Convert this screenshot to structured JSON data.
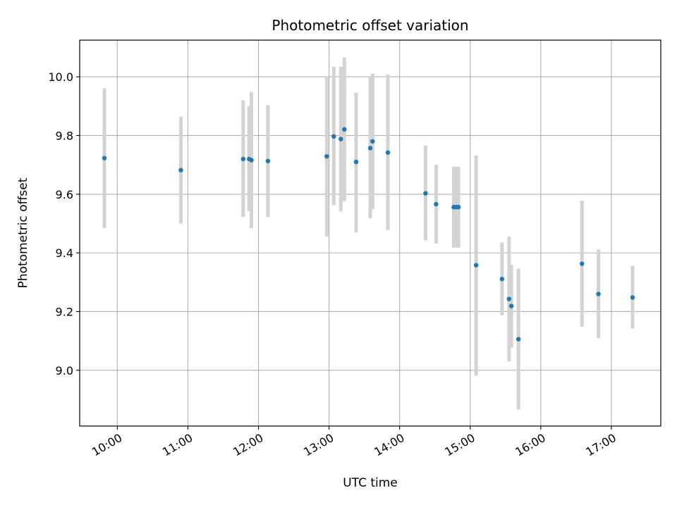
{
  "chart_data": {
    "type": "scatter",
    "title": "Photometric offset variation",
    "xlabel": "UTC time",
    "ylabel": "Photometric offset",
    "xlim": [
      "09:28",
      "17:42"
    ],
    "ylim": [
      8.81,
      10.125
    ],
    "x_ticks": [
      "10:00",
      "11:00",
      "12:00",
      "13:00",
      "14:00",
      "15:00",
      "16:00",
      "17:00"
    ],
    "y_ticks": [
      "9.0",
      "9.2",
      "9.4",
      "9.6",
      "9.8",
      "10.0"
    ],
    "grid": true,
    "colors": {
      "point": "#1f77b4",
      "errorbar": "#d3d3d3",
      "grid": "#b0b0b0"
    },
    "series": [
      {
        "points": [
          {
            "x": "09:49",
            "y": 9.723,
            "lo": 9.485,
            "hi": 9.961
          },
          {
            "x": "10:54",
            "y": 9.682,
            "lo": 9.5,
            "hi": 9.864
          },
          {
            "x": "11:47",
            "y": 9.72,
            "lo": 9.522,
            "hi": 9.92
          },
          {
            "x": "11:52",
            "y": 9.72,
            "lo": 9.543,
            "hi": 9.9
          },
          {
            "x": "11:54",
            "y": 9.716,
            "lo": 9.484,
            "hi": 9.948
          },
          {
            "x": "12:08",
            "y": 9.713,
            "lo": 9.522,
            "hi": 9.903
          },
          {
            "x": "12:58",
            "y": 9.729,
            "lo": 9.456,
            "hi": 10.0
          },
          {
            "x": "13:04",
            "y": 9.797,
            "lo": 9.563,
            "hi": 10.034
          },
          {
            "x": "13:10",
            "y": 9.788,
            "lo": 9.541,
            "hi": 10.034
          },
          {
            "x": "13:13",
            "y": 9.821,
            "lo": 9.576,
            "hi": 10.066
          },
          {
            "x": "13:23",
            "y": 9.71,
            "lo": 9.47,
            "hi": 9.946
          },
          {
            "x": "13:35",
            "y": 9.757,
            "lo": 9.518,
            "hi": 9.998
          },
          {
            "x": "13:37",
            "y": 9.78,
            "lo": 9.549,
            "hi": 10.011
          },
          {
            "x": "13:50",
            "y": 9.742,
            "lo": 9.478,
            "hi": 10.008
          },
          {
            "x": "14:22",
            "y": 9.603,
            "lo": 9.443,
            "hi": 9.766
          },
          {
            "x": "14:31",
            "y": 9.566,
            "lo": 9.432,
            "hi": 9.7
          },
          {
            "x": "14:46",
            "y": 9.556,
            "lo": 9.418,
            "hi": 9.694
          },
          {
            "x": "14:48",
            "y": 9.556,
            "lo": 9.418,
            "hi": 9.694
          },
          {
            "x": "14:50",
            "y": 9.556,
            "lo": 9.418,
            "hi": 9.694
          },
          {
            "x": "15:05",
            "y": 9.358,
            "lo": 8.982,
            "hi": 9.732
          },
          {
            "x": "15:27",
            "y": 9.311,
            "lo": 9.187,
            "hi": 9.435
          },
          {
            "x": "15:33",
            "y": 9.243,
            "lo": 9.03,
            "hi": 9.456
          },
          {
            "x": "15:35",
            "y": 9.219,
            "lo": 9.078,
            "hi": 9.36
          },
          {
            "x": "15:41",
            "y": 9.106,
            "lo": 8.866,
            "hi": 9.346
          },
          {
            "x": "16:35",
            "y": 9.363,
            "lo": 9.148,
            "hi": 9.578
          },
          {
            "x": "16:49",
            "y": 9.26,
            "lo": 9.109,
            "hi": 9.411
          },
          {
            "x": "17:18",
            "y": 9.248,
            "lo": 9.142,
            "hi": 9.356
          }
        ]
      }
    ]
  }
}
